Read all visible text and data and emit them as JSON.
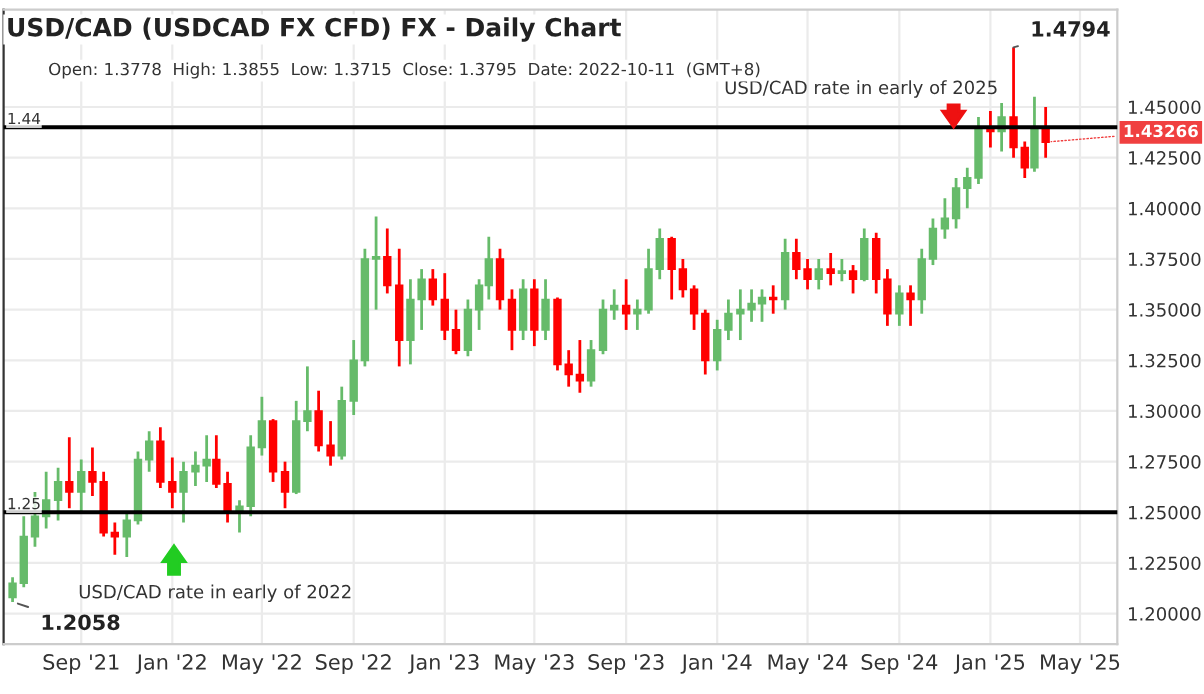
{
  "chart_data": {
    "type": "candlestick",
    "title": "USD/CAD (USDCAD FX CFD) FX - Daily Chart",
    "subtitle": "Open: 1.3778  High: 1.3855  Low: 1.3715  Close: 1.3795  Date: 2022-10-11  (GMT+8)",
    "x": [
      "2021-06-01",
      "2021-06-16",
      "2021-07-01",
      "2021-07-16",
      "2021-08-01",
      "2021-08-16",
      "2021-09-01",
      "2021-09-16",
      "2021-10-01",
      "2021-10-16",
      "2021-11-01",
      "2021-11-16",
      "2021-12-01",
      "2021-12-16",
      "2022-01-01",
      "2022-01-16",
      "2022-02-01",
      "2022-02-16",
      "2022-03-01",
      "2022-03-16",
      "2022-04-01",
      "2022-04-16",
      "2022-05-01",
      "2022-05-16",
      "2022-06-01",
      "2022-06-16",
      "2022-07-01",
      "2022-07-16",
      "2022-08-01",
      "2022-08-16",
      "2022-09-01",
      "2022-09-16",
      "2022-10-01",
      "2022-10-16",
      "2022-11-01",
      "2022-11-16",
      "2022-12-01",
      "2022-12-16",
      "2023-01-01",
      "2023-01-16",
      "2023-02-01",
      "2023-02-16",
      "2023-03-01",
      "2023-03-16",
      "2023-04-01",
      "2023-04-16",
      "2023-05-01",
      "2023-05-16",
      "2023-06-01",
      "2023-06-16",
      "2023-07-01",
      "2023-07-16",
      "2023-08-01",
      "2023-08-16",
      "2023-09-01",
      "2023-09-16",
      "2023-10-01",
      "2023-10-16",
      "2023-11-01",
      "2023-11-16",
      "2023-12-01",
      "2023-12-16",
      "2024-01-01",
      "2024-01-16",
      "2024-02-01",
      "2024-02-16",
      "2024-03-01",
      "2024-03-16",
      "2024-04-01",
      "2024-04-16",
      "2024-05-01",
      "2024-05-16",
      "2024-06-01",
      "2024-06-16",
      "2024-07-01",
      "2024-07-16",
      "2024-08-01",
      "2024-08-16",
      "2024-09-01",
      "2024-09-16",
      "2024-10-01",
      "2024-10-16",
      "2024-11-01",
      "2024-11-16",
      "2024-12-01",
      "2024-12-16",
      "2025-01-01",
      "2025-01-16",
      "2025-02-01",
      "2025-02-16",
      "2025-03-01",
      "2025-03-16"
    ],
    "ohlc": [
      [
        1.208,
        1.218,
        1.2058,
        1.215
      ],
      [
        1.215,
        1.248,
        1.213,
        1.238
      ],
      [
        1.238,
        1.26,
        1.233,
        1.248
      ],
      [
        1.248,
        1.27,
        1.242,
        1.256
      ],
      [
        1.256,
        1.272,
        1.246,
        1.265
      ],
      [
        1.265,
        1.287,
        1.252,
        1.26
      ],
      [
        1.26,
        1.276,
        1.25,
        1.27
      ],
      [
        1.27,
        1.282,
        1.258,
        1.265
      ],
      [
        1.265,
        1.27,
        1.238,
        1.24
      ],
      [
        1.24,
        1.245,
        1.229,
        1.238
      ],
      [
        1.238,
        1.25,
        1.228,
        1.246
      ],
      [
        1.246,
        1.28,
        1.244,
        1.276
      ],
      [
        1.276,
        1.29,
        1.27,
        1.285
      ],
      [
        1.285,
        1.292,
        1.262,
        1.265
      ],
      [
        1.265,
        1.277,
        1.252,
        1.26
      ],
      [
        1.26,
        1.275,
        1.245,
        1.27
      ],
      [
        1.27,
        1.28,
        1.263,
        1.273
      ],
      [
        1.273,
        1.288,
        1.265,
        1.276
      ],
      [
        1.276,
        1.288,
        1.262,
        1.264
      ],
      [
        1.264,
        1.27,
        1.245,
        1.25
      ],
      [
        1.25,
        1.256,
        1.24,
        1.253
      ],
      [
        1.253,
        1.288,
        1.248,
        1.282
      ],
      [
        1.282,
        1.307,
        1.278,
        1.295
      ],
      [
        1.295,
        1.296,
        1.265,
        1.27
      ],
      [
        1.27,
        1.275,
        1.252,
        1.26
      ],
      [
        1.26,
        1.305,
        1.259,
        1.295
      ],
      [
        1.295,
        1.322,
        1.29,
        1.3
      ],
      [
        1.3,
        1.31,
        1.28,
        1.283
      ],
      [
        1.283,
        1.295,
        1.273,
        1.278
      ],
      [
        1.278,
        1.312,
        1.276,
        1.305
      ],
      [
        1.305,
        1.335,
        1.298,
        1.325
      ],
      [
        1.325,
        1.38,
        1.322,
        1.375
      ],
      [
        1.375,
        1.396,
        1.35,
        1.376
      ],
      [
        1.376,
        1.39,
        1.358,
        1.362
      ],
      [
        1.362,
        1.38,
        1.322,
        1.335
      ],
      [
        1.335,
        1.365,
        1.323,
        1.355
      ],
      [
        1.355,
        1.37,
        1.34,
        1.365
      ],
      [
        1.365,
        1.37,
        1.352,
        1.355
      ],
      [
        1.355,
        1.368,
        1.335,
        1.34
      ],
      [
        1.34,
        1.35,
        1.328,
        1.33
      ],
      [
        1.33,
        1.355,
        1.327,
        1.35
      ],
      [
        1.35,
        1.365,
        1.34,
        1.362
      ],
      [
        1.362,
        1.386,
        1.355,
        1.375
      ],
      [
        1.375,
        1.38,
        1.35,
        1.355
      ],
      [
        1.355,
        1.36,
        1.33,
        1.34
      ],
      [
        1.34,
        1.365,
        1.335,
        1.36
      ],
      [
        1.36,
        1.365,
        1.332,
        1.34
      ],
      [
        1.34,
        1.365,
        1.335,
        1.355
      ],
      [
        1.355,
        1.356,
        1.32,
        1.323
      ],
      [
        1.323,
        1.33,
        1.312,
        1.318
      ],
      [
        1.318,
        1.335,
        1.309,
        1.315
      ],
      [
        1.315,
        1.335,
        1.312,
        1.33
      ],
      [
        1.33,
        1.355,
        1.328,
        1.35
      ],
      [
        1.35,
        1.36,
        1.345,
        1.352
      ],
      [
        1.352,
        1.365,
        1.34,
        1.348
      ],
      [
        1.348,
        1.355,
        1.34,
        1.35
      ],
      [
        1.35,
        1.38,
        1.348,
        1.37
      ],
      [
        1.37,
        1.39,
        1.365,
        1.385
      ],
      [
        1.385,
        1.386,
        1.355,
        1.37
      ],
      [
        1.37,
        1.375,
        1.356,
        1.36
      ],
      [
        1.36,
        1.362,
        1.34,
        1.348
      ],
      [
        1.348,
        1.35,
        1.318,
        1.325
      ],
      [
        1.325,
        1.345,
        1.32,
        1.34
      ],
      [
        1.34,
        1.355,
        1.335,
        1.348
      ],
      [
        1.348,
        1.36,
        1.335,
        1.35
      ],
      [
        1.35,
        1.36,
        1.344,
        1.353
      ],
      [
        1.353,
        1.36,
        1.344,
        1.356
      ],
      [
        1.356,
        1.362,
        1.348,
        1.355
      ],
      [
        1.355,
        1.385,
        1.35,
        1.378
      ],
      [
        1.378,
        1.385,
        1.365,
        1.37
      ],
      [
        1.37,
        1.375,
        1.36,
        1.365
      ],
      [
        1.365,
        1.375,
        1.36,
        1.37
      ],
      [
        1.37,
        1.378,
        1.362,
        1.368
      ],
      [
        1.368,
        1.375,
        1.364,
        1.369
      ],
      [
        1.369,
        1.372,
        1.358,
        1.365
      ],
      [
        1.365,
        1.39,
        1.364,
        1.385
      ],
      [
        1.385,
        1.388,
        1.358,
        1.365
      ],
      [
        1.365,
        1.37,
        1.342,
        1.348
      ],
      [
        1.348,
        1.362,
        1.342,
        1.358
      ],
      [
        1.358,
        1.362,
        1.342,
        1.355
      ],
      [
        1.355,
        1.38,
        1.348,
        1.375
      ],
      [
        1.375,
        1.395,
        1.372,
        1.39
      ],
      [
        1.39,
        1.405,
        1.385,
        1.395
      ],
      [
        1.395,
        1.415,
        1.39,
        1.41
      ],
      [
        1.41,
        1.42,
        1.4,
        1.415
      ],
      [
        1.415,
        1.445,
        1.412,
        1.44
      ],
      [
        1.44,
        1.448,
        1.43,
        1.438
      ],
      [
        1.438,
        1.452,
        1.428,
        1.445
      ],
      [
        1.445,
        1.4794,
        1.425,
        1.43
      ],
      [
        1.43,
        1.433,
        1.415,
        1.42
      ],
      [
        1.42,
        1.455,
        1.418,
        1.44
      ],
      [
        1.44,
        1.45,
        1.425,
        1.43266
      ]
    ],
    "colors": [
      "#66bb6a",
      "#66bb6a",
      "#66bb6a",
      "#66bb6a",
      "#66bb6a",
      "#ff0000",
      "#66bb6a",
      "#ff0000",
      "#ff0000",
      "#ff0000",
      "#66bb6a",
      "#66bb6a",
      "#66bb6a",
      "#ff0000",
      "#ff0000",
      "#66bb6a",
      "#66bb6a",
      "#66bb6a",
      "#ff0000",
      "#ff0000",
      "#66bb6a",
      "#66bb6a",
      "#66bb6a",
      "#ff0000",
      "#ff0000",
      "#66bb6a",
      "#66bb6a",
      "#ff0000",
      "#ff0000",
      "#66bb6a",
      "#66bb6a",
      "#66bb6a",
      "#66bb6a",
      "#ff0000",
      "#ff0000",
      "#66bb6a",
      "#66bb6a",
      "#ff0000",
      "#ff0000",
      "#ff0000",
      "#66bb6a",
      "#66bb6a",
      "#66bb6a",
      "#ff0000",
      "#ff0000",
      "#66bb6a",
      "#ff0000",
      "#66bb6a",
      "#ff0000",
      "#ff0000",
      "#ff0000",
      "#66bb6a",
      "#66bb6a",
      "#66bb6a",
      "#ff0000",
      "#66bb6a",
      "#66bb6a",
      "#66bb6a",
      "#ff0000",
      "#ff0000",
      "#ff0000",
      "#ff0000",
      "#66bb6a",
      "#66bb6a",
      "#66bb6a",
      "#66bb6a",
      "#66bb6a",
      "#ff0000",
      "#66bb6a",
      "#ff0000",
      "#ff0000",
      "#66bb6a",
      "#ff0000",
      "#66bb6a",
      "#ff0000",
      "#66bb6a",
      "#ff0000",
      "#ff0000",
      "#66bb6a",
      "#ff0000",
      "#66bb6a",
      "#66bb6a",
      "#66bb6a",
      "#66bb6a",
      "#66bb6a",
      "#66bb6a",
      "#ff0000",
      "#66bb6a",
      "#ff0000",
      "#ff0000",
      "#66bb6a",
      "#ff0000"
    ],
    "xlim": [
      "2021-05-20",
      "2025-06-20"
    ],
    "xticks": [
      {
        "value": "2021-09-01",
        "label": "Sep '21"
      },
      {
        "value": "2022-01-01",
        "label": "Jan '22"
      },
      {
        "value": "2022-05-01",
        "label": "May '22"
      },
      {
        "value": "2022-09-01",
        "label": "Sep '22"
      },
      {
        "value": "2023-01-01",
        "label": "Jan '23"
      },
      {
        "value": "2023-05-01",
        "label": "May '23"
      },
      {
        "value": "2023-09-01",
        "label": "Sep '23"
      },
      {
        "value": "2024-01-01",
        "label": "Jan '24"
      },
      {
        "value": "2024-05-01",
        "label": "May '24"
      },
      {
        "value": "2024-09-01",
        "label": "Sep '24"
      },
      {
        "value": "2025-01-01",
        "label": "Jan '25"
      },
      {
        "value": "2025-05-01",
        "label": "May '25"
      }
    ],
    "ylim": [
      1.185,
      1.498
    ],
    "yticks": [
      {
        "value": 1.2,
        "label": "1.20000"
      },
      {
        "value": 1.225,
        "label": "1.22500"
      },
      {
        "value": 1.25,
        "label": "1.25000"
      },
      {
        "value": 1.275,
        "label": "1.27500"
      },
      {
        "value": 1.3,
        "label": "1.30000"
      },
      {
        "value": 1.325,
        "label": "1.32500"
      },
      {
        "value": 1.35,
        "label": "1.35000"
      },
      {
        "value": 1.375,
        "label": "1.37500"
      },
      {
        "value": 1.4,
        "label": "1.40000"
      },
      {
        "value": 1.425,
        "label": "1.42500"
      },
      {
        "value": 1.45,
        "label": "1.45000"
      }
    ],
    "grid": true,
    "ref_lines": [
      {
        "axis": "y",
        "value": 1.44,
        "label": "1.44",
        "color": "#000000"
      },
      {
        "axis": "y",
        "value": 1.25,
        "label": "1.25",
        "color": "#000000"
      }
    ],
    "annotations": [
      {
        "text": "1.4794",
        "x": "2025-02-01",
        "y": 1.4794
      },
      {
        "text": "1.2058",
        "x": "2021-06-01",
        "y": 1.2058
      },
      {
        "text": "1.43266",
        "x": "2025-03-16",
        "y": 1.43266
      },
      "USD/CAD rate in early of 2025",
      "USD/CAD rate in early of 2022"
    ]
  }
}
